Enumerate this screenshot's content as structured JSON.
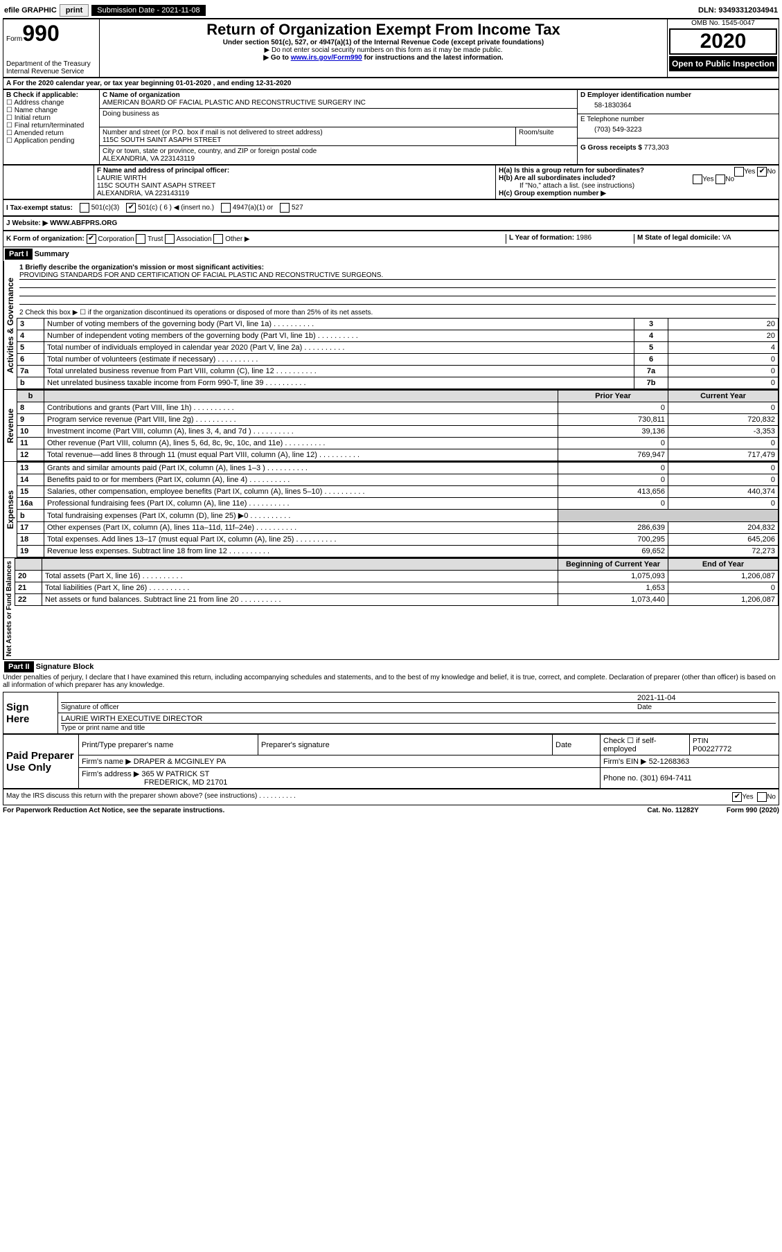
{
  "topbar": {
    "efile": "efile GRAPHIC",
    "print": "print",
    "sub_label": "Submission Date - ",
    "sub_date": "2021-11-08",
    "dln_label": "DLN: ",
    "dln": "93493312034941"
  },
  "header": {
    "form_prefix": "Form",
    "form_no": "990",
    "dept": "Department of the Treasury\nInternal Revenue Service",
    "title": "Return of Organization Exempt From Income Tax",
    "subtitle": "Under section 501(c), 527, or 4947(a)(1) of the Internal Revenue Code (except private foundations)",
    "note1": "▶ Do not enter social security numbers on this form as it may be made public.",
    "note2_pre": "▶ Go to ",
    "note2_link": "www.irs.gov/Form990",
    "note2_post": " for instructions and the latest information.",
    "omb": "OMB No. 1545-0047",
    "year": "2020",
    "open": "Open to Public Inspection"
  },
  "periodA": "For the 2020 calendar year, or tax year beginning 01-01-2020   , and ending 12-31-2020",
  "boxB": {
    "label": "B Check if applicable:",
    "items": [
      "Address change",
      "Name change",
      "Initial return",
      "Final return/terminated",
      "Amended return",
      "Application pending"
    ]
  },
  "boxC": {
    "name_label": "C Name of organization",
    "name": "AMERICAN BOARD OF FACIAL PLASTIC AND RECONSTRUCTIVE SURGERY INC",
    "dba_label": "Doing business as",
    "addr_label": "Number and street (or P.O. box if mail is not delivered to street address)",
    "room_label": "Room/suite",
    "addr": "115C SOUTH SAINT ASAPH STREET",
    "city_label": "City or town, state or province, country, and ZIP or foreign postal code",
    "city": "ALEXANDRIA, VA  223143119"
  },
  "boxD": {
    "label": "D Employer identification number",
    "val": "58-1830364"
  },
  "boxE": {
    "label": "E Telephone number",
    "val": "(703) 549-3223"
  },
  "boxG": {
    "label": "G Gross receipts $ ",
    "val": "773,303"
  },
  "boxF": {
    "label": "F  Name and address of principal officer:",
    "name": "LAURIE WIRTH",
    "addr1": "115C SOUTH SAINT ASAPH STREET",
    "addr2": "ALEXANDRIA, VA  223143119"
  },
  "boxH": {
    "a": "H(a)  Is this a group return for subordinates?",
    "b": "H(b)  Are all subordinates included?",
    "note": "If \"No,\" attach a list. (see instructions)",
    "c": "H(c)  Group exemption number ▶",
    "yes": "Yes",
    "no": "No"
  },
  "boxI": {
    "label": "I   Tax-exempt status:",
    "c501c3": "501(c)(3)",
    "c501c": "501(c) ( 6 ) ◀ (insert no.)",
    "c4947": "4947(a)(1) or",
    "c527": "527"
  },
  "boxJ": {
    "label": "J   Website: ▶",
    "val": "  WWW.ABFPRS.ORG"
  },
  "boxK": {
    "label": "K Form of organization:",
    "corp": "Corporation",
    "trust": "Trust",
    "assoc": "Association",
    "other": "Other ▶"
  },
  "boxL": {
    "label": "L Year of formation: ",
    "val": "1986"
  },
  "boxM": {
    "label": "M State of legal domicile: ",
    "val": "VA"
  },
  "part1": {
    "hdr": "Part I",
    "title": "Summary",
    "q1": "1   Briefly describe the organization's mission or most significant activities:",
    "q1val": "PROVIDING STANDARDS FOR AND CERTIFICATION OF FACIAL PLASTIC AND RECONSTRUCTIVE SURGEONS.",
    "q2": "2   Check this box ▶ ☐  if the organization discontinued its operations or disposed of more than 25% of its net assets.",
    "rows_gov": [
      {
        "n": "3",
        "t": "Number of voting members of the governing body (Part VI, line 1a)",
        "box": "3",
        "v": "20"
      },
      {
        "n": "4",
        "t": "Number of independent voting members of the governing body (Part VI, line 1b)",
        "box": "4",
        "v": "20"
      },
      {
        "n": "5",
        "t": "Total number of individuals employed in calendar year 2020 (Part V, line 2a)",
        "box": "5",
        "v": "4"
      },
      {
        "n": "6",
        "t": "Total number of volunteers (estimate if necessary)",
        "box": "6",
        "v": "0"
      },
      {
        "n": "7a",
        "t": "Total unrelated business revenue from Part VIII, column (C), line 12",
        "box": "7a",
        "v": "0"
      },
      {
        "n": "b",
        "t": "Net unrelated business taxable income from Form 990-T, line 39",
        "box": "7b",
        "v": "0"
      }
    ],
    "col_prior": "Prior Year",
    "col_curr": "Current Year",
    "rows_rev": [
      {
        "n": "8",
        "t": "Contributions and grants (Part VIII, line 1h)",
        "p": "0",
        "c": "0"
      },
      {
        "n": "9",
        "t": "Program service revenue (Part VIII, line 2g)",
        "p": "730,811",
        "c": "720,832"
      },
      {
        "n": "10",
        "t": "Investment income (Part VIII, column (A), lines 3, 4, and 7d )",
        "p": "39,136",
        "c": "-3,353"
      },
      {
        "n": "11",
        "t": "Other revenue (Part VIII, column (A), lines 5, 6d, 8c, 9c, 10c, and 11e)",
        "p": "0",
        "c": "0"
      },
      {
        "n": "12",
        "t": "Total revenue—add lines 8 through 11 (must equal Part VIII, column (A), line 12)",
        "p": "769,947",
        "c": "717,479"
      }
    ],
    "rows_exp": [
      {
        "n": "13",
        "t": "Grants and similar amounts paid (Part IX, column (A), lines 1–3 )",
        "p": "0",
        "c": "0"
      },
      {
        "n": "14",
        "t": "Benefits paid to or for members (Part IX, column (A), line 4)",
        "p": "0",
        "c": "0"
      },
      {
        "n": "15",
        "t": "Salaries, other compensation, employee benefits (Part IX, column (A), lines 5–10)",
        "p": "413,656",
        "c": "440,374"
      },
      {
        "n": "16a",
        "t": "Professional fundraising fees (Part IX, column (A), line 11e)",
        "p": "0",
        "c": "0"
      },
      {
        "n": "b",
        "t": "Total fundraising expenses (Part IX, column (D), line 25) ▶0",
        "p": "",
        "c": ""
      },
      {
        "n": "17",
        "t": "Other expenses (Part IX, column (A), lines 11a–11d, 11f–24e)",
        "p": "286,639",
        "c": "204,832"
      },
      {
        "n": "18",
        "t": "Total expenses. Add lines 13–17 (must equal Part IX, column (A), line 25)",
        "p": "700,295",
        "c": "645,206"
      },
      {
        "n": "19",
        "t": "Revenue less expenses. Subtract line 18 from line 12",
        "p": "69,652",
        "c": "72,273"
      }
    ],
    "col_beg": "Beginning of Current Year",
    "col_end": "End of Year",
    "rows_net": [
      {
        "n": "20",
        "t": "Total assets (Part X, line 16)",
        "p": "1,075,093",
        "c": "1,206,087"
      },
      {
        "n": "21",
        "t": "Total liabilities (Part X, line 26)",
        "p": "1,653",
        "c": "0"
      },
      {
        "n": "22",
        "t": "Net assets or fund balances. Subtract line 21 from line 20",
        "p": "1,073,440",
        "c": "1,206,087"
      }
    ],
    "vlab_gov": "Activities & Governance",
    "vlab_rev": "Revenue",
    "vlab_exp": "Expenses",
    "vlab_net": "Net Assets or Fund Balances"
  },
  "part2": {
    "hdr": "Part II",
    "title": "Signature Block",
    "decl": "Under penalties of perjury, I declare that I have examined this return, including accompanying schedules and statements, and to the best of my knowledge and belief, it is true, correct, and complete. Declaration of preparer (other than officer) is based on all information of which preparer has any knowledge.",
    "sign_here": "Sign Here",
    "sig_officer": "Signature of officer",
    "sig_date_label": "Date",
    "sig_date": "2021-11-04",
    "sig_name": "LAURIE WIRTH  EXECUTIVE DIRECTOR",
    "sig_name_label": "Type or print name and title",
    "paid": "Paid Preparer Use Only",
    "prep_name_label": "Print/Type preparer's name",
    "prep_sig_label": "Preparer's signature",
    "date_label": "Date",
    "check_self": "Check ☐ if self-employed",
    "ptin_label": "PTIN",
    "ptin": "P00227772",
    "firm_name_label": "Firm's name      ▶",
    "firm_name": "DRAPER & MCGINLEY PA",
    "firm_ein_label": "Firm's EIN ▶",
    "firm_ein": "52-1268363",
    "firm_addr_label": "Firm's address ▶",
    "firm_addr1": "365 W PATRICK ST",
    "firm_addr2": "FREDERICK, MD  21701",
    "phone_label": "Phone no. ",
    "phone": "(301) 694-7411",
    "discuss": "May the IRS discuss this return with the preparer shown above? (see instructions)",
    "yes": "Yes",
    "no": "No"
  },
  "footer": {
    "pra": "For Paperwork Reduction Act Notice, see the separate instructions.",
    "cat": "Cat. No. 11282Y",
    "form": "Form 990 (2020)"
  }
}
